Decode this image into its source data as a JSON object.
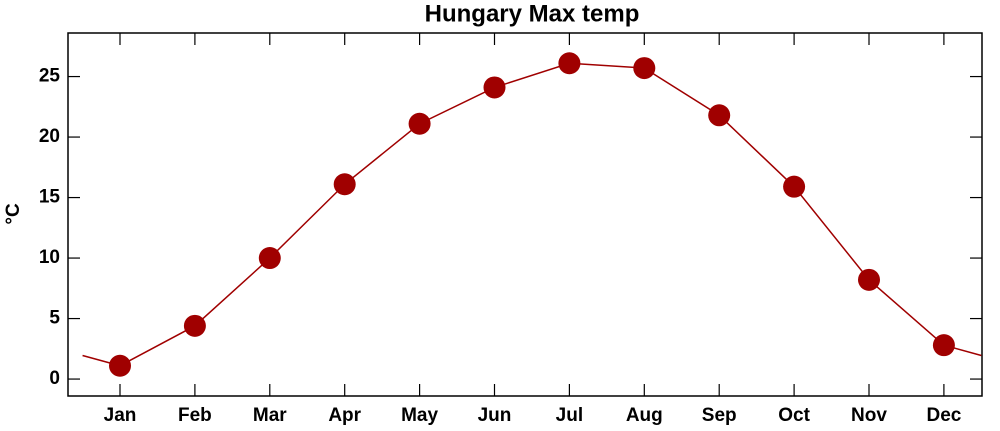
{
  "chart_data": {
    "type": "line",
    "title": "Hungary Max temp",
    "y_label": "°C",
    "categories": [
      "Jan",
      "Feb",
      "Mar",
      "Apr",
      "May",
      "Jun",
      "Jul",
      "Aug",
      "Sep",
      "Oct",
      "Nov",
      "Dec"
    ],
    "series": [
      {
        "name": "Max temp",
        "color": "#a00000",
        "values": [
          1.1,
          4.4,
          10.0,
          16.1,
          21.1,
          24.1,
          26.1,
          25.7,
          21.8,
          15.9,
          8.2,
          2.8
        ]
      }
    ],
    "ylim": [
      -1.4,
      28.6
    ],
    "yticks": [
      0,
      5,
      10,
      15,
      20,
      25
    ],
    "grid": false
  }
}
